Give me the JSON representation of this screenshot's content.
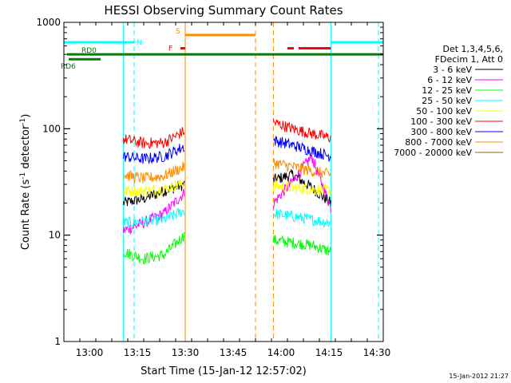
{
  "chart_data": {
    "type": "line",
    "title": "HESSI Observing Summary Count Rates",
    "xlabel": "Start Time (15-Jan-12 12:57:02)",
    "ylabel_main": "Count Rate (s",
    "ylabel_sup1": "-1",
    "ylabel_mid": " detector",
    "ylabel_sup2": "-1",
    "ylabel_end": ")",
    "yscale": "log",
    "ylim": [
      1,
      1000
    ],
    "xlim_minutes": [
      -5,
      95
    ],
    "x_origin": "12:57:02",
    "x_ticks": [
      {
        "t": 3,
        "label": "13:00"
      },
      {
        "t": 18,
        "label": "13:15"
      },
      {
        "t": 33,
        "label": "13:30"
      },
      {
        "t": 48,
        "label": "13:45"
      },
      {
        "t": 63,
        "label": "14:00"
      },
      {
        "t": 78,
        "label": "14:15"
      },
      {
        "t": 93,
        "label": "14:30"
      }
    ],
    "y_ticks": [
      {
        "v": 1,
        "label": "1"
      },
      {
        "v": 10,
        "label": "10"
      },
      {
        "v": 100,
        "label": "100"
      },
      {
        "v": 1000,
        "label": "1000"
      }
    ],
    "legend_header": [
      "Det 1,3,4,5,6,",
      "FDecim 1, Att 0"
    ],
    "legend_position": "right",
    "date_stamp": "15-Jan-2012 21:27",
    "segments": [
      [
        13.6,
        32.7
      ],
      [
        60.6,
        78.6
      ]
    ],
    "series": [
      {
        "name": "3 - 6 keV",
        "color": "#000000",
        "seg1": [
          20,
          22,
          26,
          30
        ],
        "seg2": [
          33,
          37,
          28,
          20
        ]
      },
      {
        "name": "6 - 12 keV",
        "color": "#ff00ff",
        "seg1": [
          11,
          13,
          16,
          25
        ],
        "seg2": [
          20,
          32,
          55,
          18
        ]
      },
      {
        "name": "12 - 25 keV",
        "color": "#00ff00",
        "seg1": [
          7,
          6,
          6.5,
          10
        ],
        "seg2": [
          9,
          8.5,
          8,
          7
        ]
      },
      {
        "name": "25 - 50 keV",
        "color": "#00ffff",
        "seg1": [
          13,
          13.5,
          14,
          17
        ],
        "seg2": [
          16,
          15,
          14,
          13
        ]
      },
      {
        "name": "50 - 100 keV",
        "color": "#ffff00",
        "seg1": [
          26,
          26,
          27,
          31
        ],
        "seg2": [
          29,
          28,
          27,
          26
        ]
      },
      {
        "name": "100 - 300 keV",
        "color": "#ff0000",
        "seg1": [
          80,
          73,
          74,
          95
        ],
        "seg2": [
          115,
          100,
          90,
          82
        ]
      },
      {
        "name": "300 - 800 keV",
        "color": "#0000ff",
        "seg1": [
          55,
          52,
          55,
          68
        ],
        "seg2": [
          78,
          70,
          62,
          55
        ]
      },
      {
        "name": "800 - 7000 keV",
        "color": "#ff8c00",
        "seg1": [
          37,
          34,
          36,
          44
        ],
        "seg2": [
          48,
          44,
          40,
          37
        ]
      },
      {
        "name": "7000 - 20000 keV",
        "color": "#8b6914",
        "seg1": [],
        "seg2": []
      }
    ],
    "status_bars": [
      {
        "label": "N",
        "color": "#00ffff",
        "value": 650,
        "spans": [
          [
            -5,
            17
          ],
          [
            78.6,
            95
          ]
        ]
      },
      {
        "label": "S",
        "color": "#ff8c00",
        "value": 760,
        "spans": [
          [
            33,
            55
          ]
        ]
      },
      {
        "label": "F",
        "color": "#ff0000",
        "value": 570,
        "spans": [
          [
            31.5,
            33
          ],
          [
            65,
            67
          ],
          [
            68.5,
            78.6
          ]
        ]
      },
      {
        "label": "RD0",
        "color": "#008000",
        "value": 500,
        "spans": [
          [
            -4,
            95
          ]
        ]
      },
      {
        "label": "RD6",
        "color": "#008000",
        "value": 450,
        "spans": [
          [
            -3.5,
            6.5
          ]
        ]
      }
    ],
    "vertical_lines": [
      {
        "t": 13.6,
        "color": "#00ffff",
        "style": "solid"
      },
      {
        "t": 17,
        "color": "#00ffff",
        "style": "dashed"
      },
      {
        "t": 33,
        "color": "#ff8c00",
        "style": "solid"
      },
      {
        "t": 55,
        "color": "#ff8c00",
        "style": "dashed"
      },
      {
        "t": 60.6,
        "color": "#ff8c00",
        "style": "dashed"
      },
      {
        "t": 78.6,
        "color": "#00ffff",
        "style": "solid"
      },
      {
        "t": 93.5,
        "color": "#00ffff",
        "style": "dashed"
      }
    ]
  }
}
